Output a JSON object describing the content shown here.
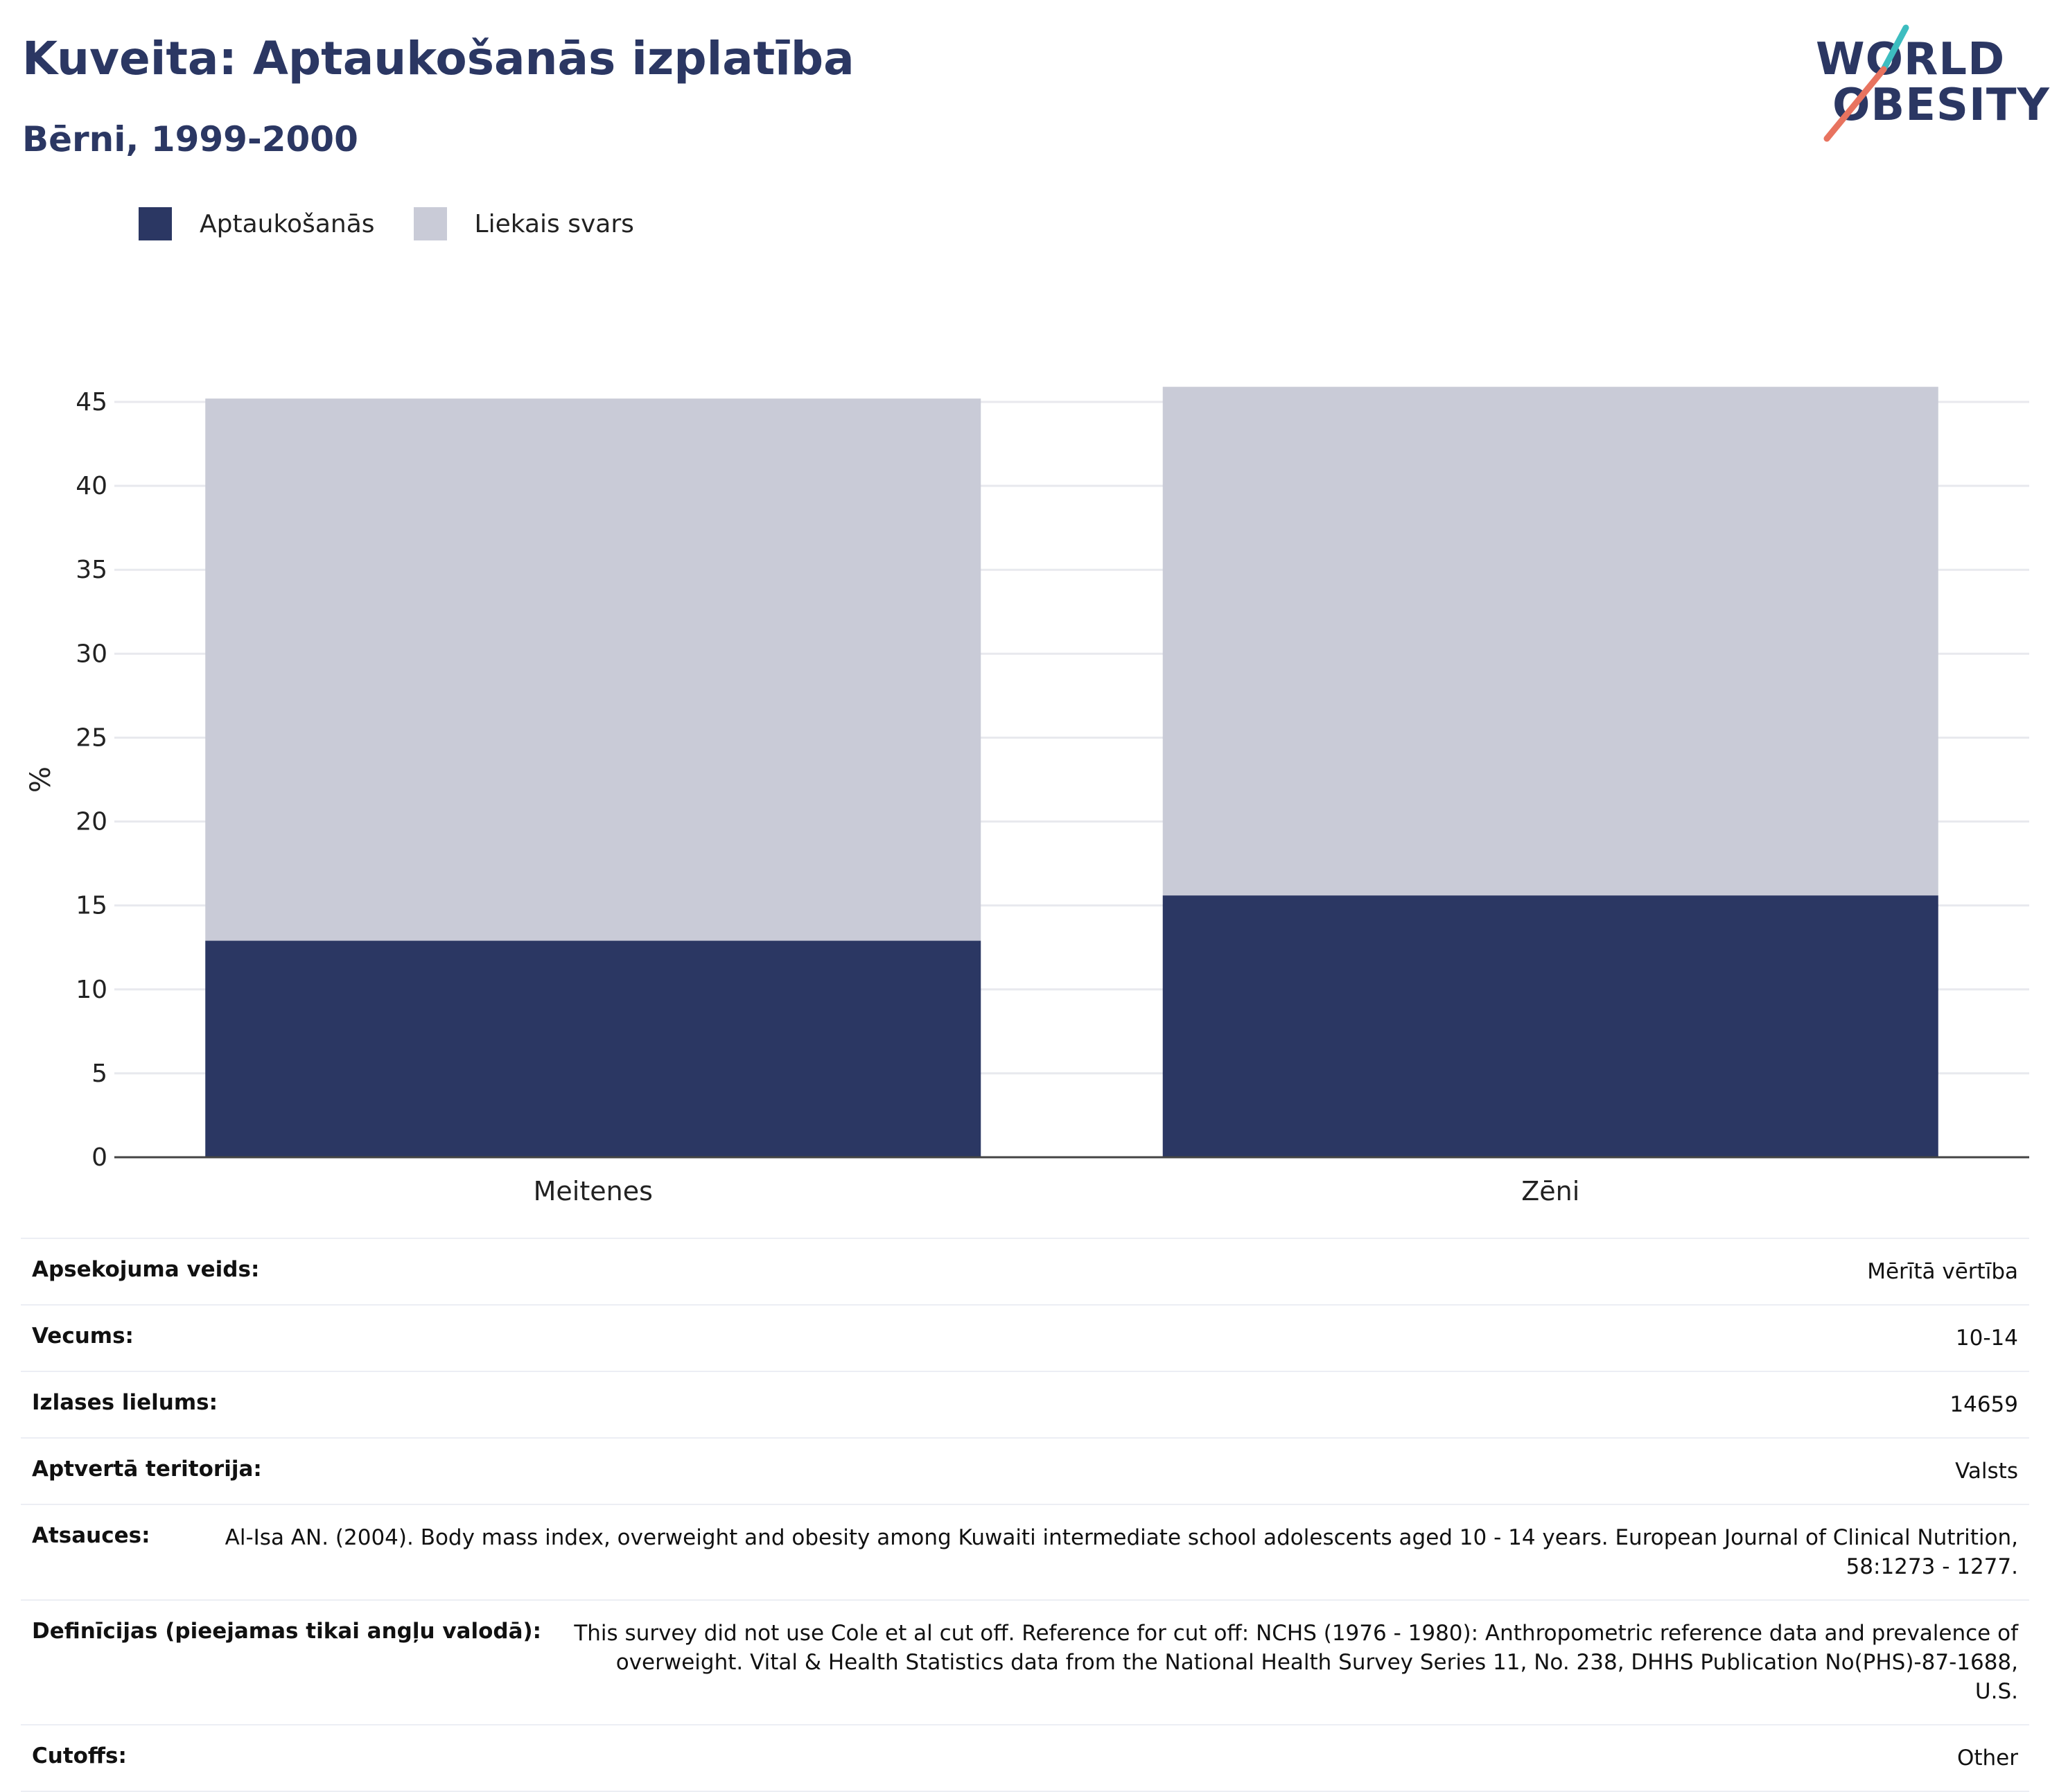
{
  "header": {
    "title": "Kuveita: Aptaukošanās izplatība",
    "subtitle": "Bērni, 1999-2000",
    "logo_line1": "WORLD",
    "logo_line2": "OBESITY"
  },
  "colors": {
    "obesity": "#2b3763",
    "overweight": "#c9cbd7",
    "title": "#2b3763",
    "logo_teal": "#3dbdc0",
    "logo_coral": "#e8735f"
  },
  "chart_data": {
    "type": "bar",
    "stacked": true,
    "categories": [
      "Meitenes",
      "Zēni"
    ],
    "series": [
      {
        "name": "Aptaukošanās",
        "values": [
          12.9,
          15.6
        ]
      },
      {
        "name": "Liekais svars",
        "values": [
          32.3,
          30.3
        ]
      }
    ],
    "ylabel": "%",
    "xlabel": "",
    "ylim": [
      0,
      45
    ],
    "yticks": [
      0,
      5,
      10,
      15,
      20,
      25,
      30,
      35,
      40,
      45
    ],
    "grid": true,
    "legend": "top-left"
  },
  "info_rows": [
    {
      "label": "Apsekojuma veids:",
      "value": "Mērītā vērtība"
    },
    {
      "label": "Vecums:",
      "value": "10-14"
    },
    {
      "label": "Izlases lielums:",
      "value": "14659"
    },
    {
      "label": "Aptvertā teritorija:",
      "value": "Valsts"
    },
    {
      "label": "Atsauces:",
      "value": "Al-Isa AN. (2004). Body mass index, overweight and obesity among Kuwaiti intermediate school adolescents aged 10 - 14 years. European Journal of Clinical Nutrition, 58:1273 - 1277."
    },
    {
      "label": "Definīcijas (pieejamas tikai angļu valodā):",
      "value": "This survey did not use Cole et al cut off. Reference for cut off: NCHS (1976 - 1980): Anthropometric reference data and prevalence of overweight. Vital & Health Statistics data from the National Health Survey Series 11, No. 238, DHHS Publication No(PHS)-87-1688, U.S."
    },
    {
      "label": "Cutoffs:",
      "value": "Other"
    }
  ]
}
